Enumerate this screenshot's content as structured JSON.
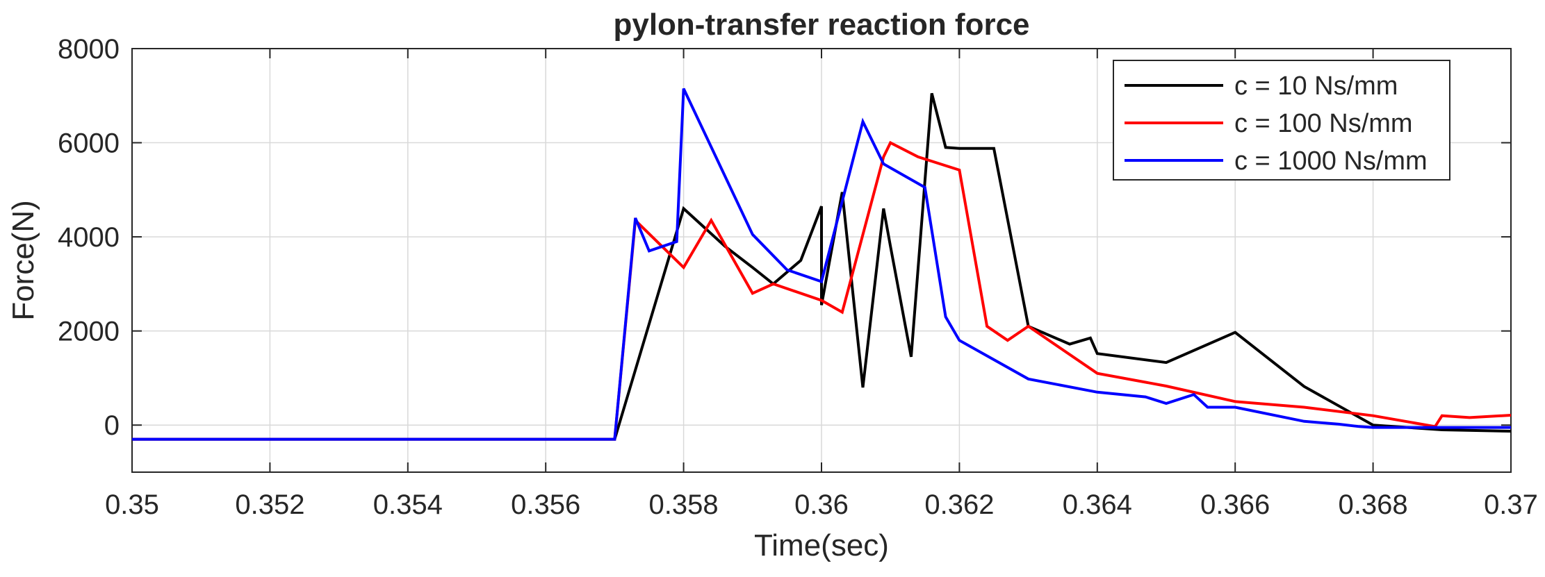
{
  "chart_data": {
    "type": "line",
    "title": "pylon-transfer reaction force",
    "xlabel": "Time(sec)",
    "ylabel": "Force(N)",
    "xlim": [
      0.35,
      0.37
    ],
    "ylim": [
      -1000,
      8000
    ],
    "xticks": [
      0.35,
      0.352,
      0.354,
      0.356,
      0.358,
      0.36,
      0.362,
      0.364,
      0.366,
      0.368,
      0.37
    ],
    "xtick_labels": [
      "0.35",
      "0.352",
      "0.354",
      "0.356",
      "0.358",
      "0.36",
      "0.362",
      "0.364",
      "0.366",
      "0.368",
      "0.37"
    ],
    "yticks": [
      0,
      2000,
      4000,
      6000,
      8000
    ],
    "ytick_labels": [
      "0",
      "2000",
      "4000",
      "6000",
      "8000"
    ],
    "grid": true,
    "legend_position": "top-right",
    "series": [
      {
        "name": "c = 10 Ns/mm",
        "color": "#000000",
        "points": [
          [
            0.35,
            -300
          ],
          [
            0.357,
            -300
          ],
          [
            0.358,
            4600
          ],
          [
            0.3586,
            3800
          ],
          [
            0.359,
            3350
          ],
          [
            0.3593,
            3000
          ],
          [
            0.3597,
            3500
          ],
          [
            0.36,
            4650
          ],
          [
            0.36,
            2550
          ],
          [
            0.3603,
            4950
          ],
          [
            0.3606,
            800
          ],
          [
            0.3609,
            4600
          ],
          [
            0.361,
            3800
          ],
          [
            0.3613,
            1450
          ],
          [
            0.3616,
            7050
          ],
          [
            0.3618,
            5900
          ],
          [
            0.362,
            5880
          ],
          [
            0.3625,
            5880
          ],
          [
            0.363,
            2100
          ],
          [
            0.3636,
            1720
          ],
          [
            0.3639,
            1850
          ],
          [
            0.364,
            1520
          ],
          [
            0.365,
            1330
          ],
          [
            0.366,
            1970
          ],
          [
            0.367,
            820
          ],
          [
            0.368,
            0
          ],
          [
            0.369,
            -100
          ],
          [
            0.37,
            -130
          ]
        ]
      },
      {
        "name": "c = 100 Ns/mm",
        "color": "#ff0000",
        "points": [
          [
            0.35,
            -300
          ],
          [
            0.357,
            -300
          ],
          [
            0.3573,
            4350
          ],
          [
            0.358,
            3350
          ],
          [
            0.3584,
            4350
          ],
          [
            0.359,
            2800
          ],
          [
            0.3593,
            3000
          ],
          [
            0.36,
            2650
          ],
          [
            0.3603,
            2400
          ],
          [
            0.3609,
            5700
          ],
          [
            0.361,
            6000
          ],
          [
            0.3614,
            5700
          ],
          [
            0.362,
            5420
          ],
          [
            0.3624,
            2100
          ],
          [
            0.3627,
            1800
          ],
          [
            0.363,
            2100
          ],
          [
            0.364,
            1100
          ],
          [
            0.365,
            830
          ],
          [
            0.366,
            500
          ],
          [
            0.367,
            380
          ],
          [
            0.368,
            200
          ],
          [
            0.3689,
            -30
          ],
          [
            0.369,
            200
          ],
          [
            0.3694,
            160
          ],
          [
            0.37,
            210
          ]
        ]
      },
      {
        "name": "c = 1000 Ns/mm",
        "color": "#0000ff",
        "points": [
          [
            0.35,
            -300
          ],
          [
            0.357,
            -300
          ],
          [
            0.3573,
            4400
          ],
          [
            0.3575,
            3700
          ],
          [
            0.3579,
            3900
          ],
          [
            0.358,
            7150
          ],
          [
            0.359,
            4050
          ],
          [
            0.3595,
            3300
          ],
          [
            0.36,
            3050
          ],
          [
            0.3606,
            6450
          ],
          [
            0.3609,
            5550
          ],
          [
            0.3615,
            5050
          ],
          [
            0.3618,
            2300
          ],
          [
            0.362,
            1800
          ],
          [
            0.363,
            980
          ],
          [
            0.364,
            700
          ],
          [
            0.3647,
            600
          ],
          [
            0.365,
            460
          ],
          [
            0.3654,
            650
          ],
          [
            0.3656,
            380
          ],
          [
            0.366,
            380
          ],
          [
            0.367,
            80
          ],
          [
            0.3675,
            20
          ],
          [
            0.3678,
            -30
          ],
          [
            0.368,
            -50
          ],
          [
            0.37,
            -50
          ]
        ]
      }
    ]
  }
}
